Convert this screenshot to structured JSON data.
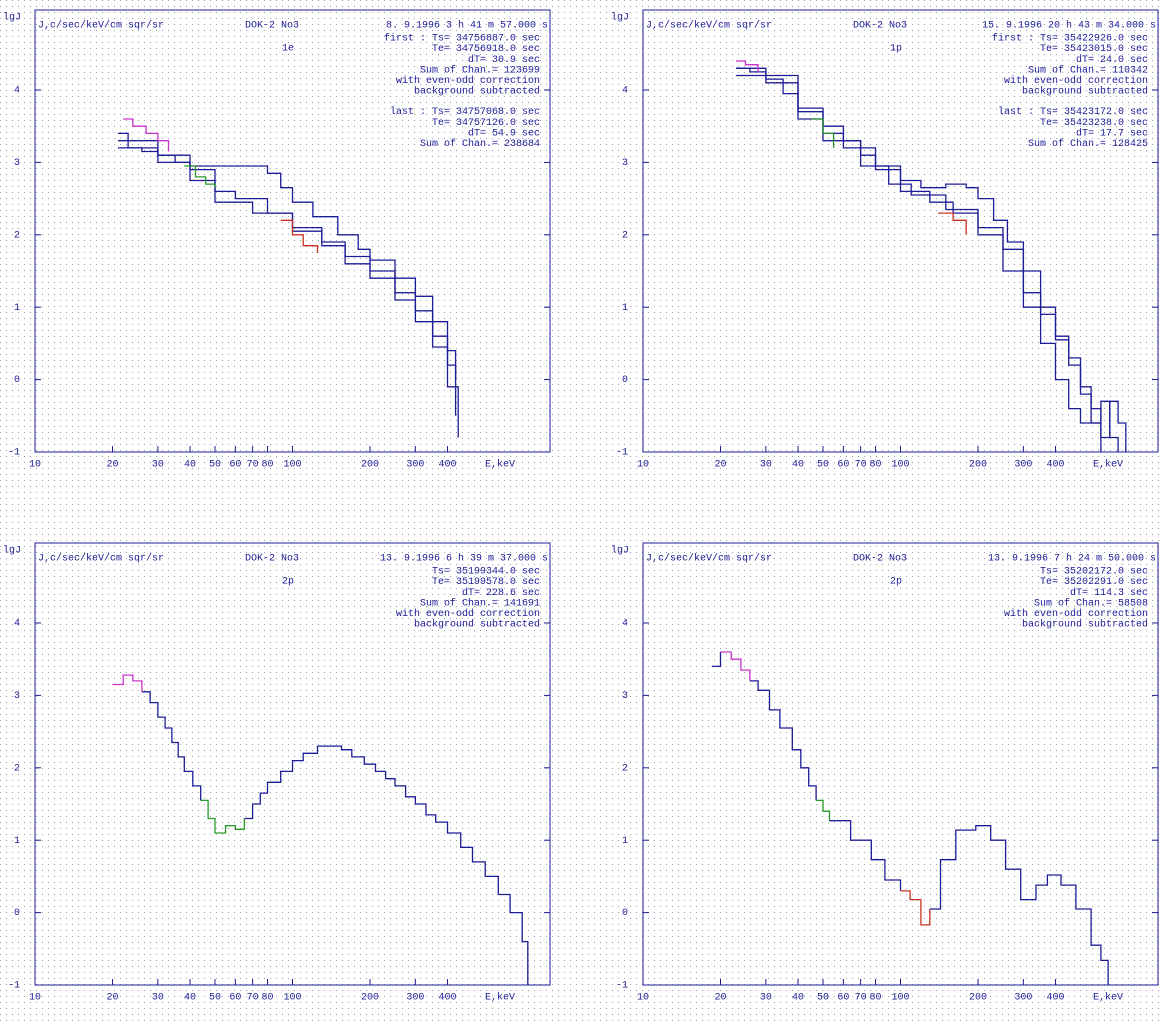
{
  "chart_data": [
    {
      "type": "step",
      "ylabel": "lgJ",
      "units": "J,c/sec/keV/cm sqr/sr",
      "instrument": "DOK-2 No3",
      "date": "8. 9.1996  3 h 41 m 57.000 s",
      "particle": "1e",
      "info": [
        "first :  Ts= 34756887.0 sec",
        "Te= 34756918.0 sec",
        "dT=   30.9 sec",
        "Sum of Chan.=     123699",
        "with even-odd correction",
        "background subtracted",
        "last :  Ts= 34757068.0 sec",
        "Te= 34757126.0 sec",
        "dT=   54.9 sec",
        "Sum of Chan.=     238684"
      ],
      "xlabel": "E,keV",
      "log_x": true,
      "xlim": [
        10,
        1000
      ],
      "xticks": [
        10,
        20,
        30,
        40,
        50,
        60,
        70,
        80,
        100,
        200,
        300,
        400
      ],
      "ylim": [
        -1,
        5
      ],
      "yticks": [
        -1,
        0,
        1,
        2,
        3,
        4
      ],
      "grid": "dotted",
      "series": [
        {
          "color": "#1c1c96",
          "x": [
            21,
            23,
            26,
            30,
            35,
            40,
            50,
            60,
            70,
            80,
            90,
            100,
            120,
            150,
            180,
            200,
            250,
            300,
            350,
            400,
            430
          ],
          "values": [
            3.3,
            3.2,
            3.15,
            3.1,
            3.0,
            2.95,
            2.95,
            2.95,
            2.95,
            2.85,
            2.65,
            2.45,
            2.25,
            2.0,
            1.8,
            1.65,
            1.4,
            1.15,
            0.8,
            0.4,
            0.0
          ]
        },
        {
          "color": "#1c1c96",
          "x": [
            21,
            23,
            30,
            40,
            50,
            60,
            80,
            100,
            130,
            160,
            200,
            250,
            300,
            350,
            400,
            430
          ],
          "values": [
            3.2,
            3.2,
            3.1,
            2.9,
            2.6,
            2.5,
            2.3,
            2.1,
            1.9,
            1.7,
            1.5,
            1.2,
            0.95,
            0.6,
            0.2,
            -0.5
          ]
        },
        {
          "color": "#1c1c96",
          "x": [
            21,
            23,
            30,
            40,
            50,
            70,
            100,
            130,
            160,
            200,
            250,
            300,
            350,
            400,
            440
          ],
          "values": [
            3.4,
            3.3,
            3.0,
            2.75,
            2.45,
            2.3,
            2.05,
            1.85,
            1.6,
            1.4,
            1.1,
            0.8,
            0.45,
            -0.1,
            -0.8
          ]
        },
        {
          "color": "#cc33cc",
          "x": [
            22,
            24,
            27,
            30,
            33
          ],
          "values": [
            3.6,
            3.5,
            3.4,
            3.3,
            3.15
          ]
        },
        {
          "color": "#2a9a2a",
          "x": [
            38,
            42,
            46,
            50
          ],
          "values": [
            2.95,
            2.8,
            2.7,
            2.65
          ]
        },
        {
          "color": "#cc3322",
          "x": [
            90,
            100,
            110,
            125
          ],
          "values": [
            2.2,
            2.0,
            1.85,
            1.75
          ]
        }
      ]
    },
    {
      "type": "step",
      "ylabel": "lgJ",
      "units": "J,c/sec/keV/cm sqr/sr",
      "instrument": "DOK-2 No3",
      "date": "15. 9.1996 20 h 43 m 34.000 s",
      "particle": "1p",
      "info": [
        "first :  Ts= 35422926.0 sec",
        "Te= 35423015.0 sec",
        "dT=   24.0 sec",
        "Sum of Chan.=     110342",
        "with even-odd correction",
        "background subtracted",
        "last :  Ts= 35423172.0 sec",
        "Te= 35423238.0 sec",
        "dT=   17.7 sec",
        "Sum of Chan.=     128425"
      ],
      "xlabel": "E,keV",
      "log_x": true,
      "xlim": [
        10,
        1000
      ],
      "xticks": [
        10,
        20,
        30,
        40,
        50,
        60,
        70,
        80,
        100,
        200,
        300,
        400
      ],
      "ylim": [
        -1,
        5
      ],
      "yticks": [
        -1,
        0,
        1,
        2,
        3,
        4
      ],
      "grid": "dotted",
      "series": [
        {
          "color": "#1c1c96",
          "x": [
            23,
            26,
            30,
            35,
            40,
            50,
            60,
            70,
            80,
            100,
            120,
            150,
            180,
            200,
            230,
            260,
            300,
            350,
            400,
            450,
            500,
            550,
            600
          ],
          "values": [
            4.3,
            4.25,
            4.15,
            3.95,
            3.75,
            3.5,
            3.3,
            3.1,
            2.95,
            2.75,
            2.65,
            2.7,
            2.65,
            2.5,
            2.2,
            1.9,
            1.5,
            1.0,
            0.6,
            0.3,
            -0.2,
            -0.6,
            -1
          ]
        },
        {
          "color": "#1c1c96",
          "x": [
            23,
            30,
            40,
            50,
            60,
            80,
            100,
            130,
            160,
            200,
            250,
            300,
            350,
            400,
            450,
            500,
            600,
            650,
            700
          ],
          "values": [
            4.3,
            4.2,
            3.7,
            3.4,
            3.2,
            2.9,
            2.6,
            2.45,
            2.3,
            2.0,
            1.5,
            1.0,
            0.5,
            0.0,
            -0.4,
            -0.6,
            -0.3,
            -0.8,
            -1
          ]
        },
        {
          "color": "#1c1c96",
          "x": [
            23,
            30,
            40,
            50,
            70,
            90,
            110,
            150,
            200,
            250,
            300,
            350,
            400,
            450,
            500,
            550,
            600,
            650,
            700,
            750
          ],
          "values": [
            4.2,
            4.1,
            3.6,
            3.3,
            2.95,
            2.7,
            2.55,
            2.35,
            2.1,
            1.8,
            1.2,
            0.9,
            0.55,
            0.2,
            -0.1,
            -0.4,
            -0.8,
            -0.3,
            -0.6,
            -1
          ]
        },
        {
          "color": "#cc33cc",
          "x": [
            23,
            25,
            28
          ],
          "values": [
            4.4,
            4.35,
            4.25
          ]
        },
        {
          "color": "#2a9a2a",
          "x": [
            45,
            50,
            55
          ],
          "values": [
            3.6,
            3.4,
            3.2
          ]
        },
        {
          "color": "#cc3322",
          "x": [
            140,
            160,
            180
          ],
          "values": [
            2.3,
            2.2,
            2.0
          ]
        }
      ]
    },
    {
      "type": "step",
      "ylabel": "lgJ",
      "units": "J,c/sec/keV/cm sqr/sr",
      "instrument": "DOK-2 No3",
      "date": "13. 9.1996  6 h 39 m 37.000 s",
      "particle": "2p",
      "info": [
        "Ts= 35199344.0 sec",
        "Te= 35199578.0 sec",
        "dT=  228.6 sec",
        "Sum of Chan.=     141691",
        "with even-odd correction",
        "background subtracted"
      ],
      "xlabel": "E,keV",
      "log_x": true,
      "xlim": [
        10,
        1000
      ],
      "xticks": [
        10,
        20,
        30,
        40,
        50,
        60,
        70,
        80,
        100,
        200,
        300,
        400
      ],
      "ylim": [
        -1,
        5
      ],
      "yticks": [
        -1,
        0,
        1,
        2,
        3,
        4
      ],
      "grid": "dotted",
      "series": [
        {
          "color": "#cc33cc",
          "x": [
            20,
            22,
            24,
            26
          ],
          "values": [
            3.15,
            3.28,
            3.2,
            3.05
          ]
        },
        {
          "color": "#1c1c96",
          "x": [
            26,
            28,
            30,
            32,
            34,
            36,
            38,
            41,
            44
          ],
          "values": [
            3.05,
            2.9,
            2.7,
            2.55,
            2.35,
            2.15,
            1.95,
            1.75,
            1.55
          ]
        },
        {
          "color": "#2a9a2a",
          "x": [
            44,
            47,
            50,
            55,
            60,
            65
          ],
          "values": [
            1.55,
            1.3,
            1.1,
            1.2,
            1.15,
            1.3
          ]
        },
        {
          "color": "#1c1c96",
          "x": [
            65,
            70,
            75,
            80,
            90,
            100,
            110,
            125,
            140,
            155,
            170,
            190,
            210,
            230,
            250,
            275,
            300,
            330,
            360,
            400,
            450,
            500,
            560,
            630,
            700,
            780,
            820
          ],
          "values": [
            1.3,
            1.5,
            1.65,
            1.8,
            1.95,
            2.1,
            2.2,
            2.3,
            2.3,
            2.25,
            2.15,
            2.05,
            1.95,
            1.85,
            1.75,
            1.6,
            1.5,
            1.35,
            1.25,
            1.1,
            0.9,
            0.7,
            0.5,
            0.25,
            0.0,
            -0.4,
            -1
          ]
        }
      ]
    },
    {
      "type": "step",
      "ylabel": "lgJ",
      "units": "J,c/sec/keV/cm sqr/sr",
      "instrument": "DOK-2 No3",
      "date": "13. 9.1996  7 h 24 m 50.000 s",
      "particle": "2p",
      "info": [
        "Ts= 35202172.0 sec",
        "Te= 35202291.0 sec",
        "dT=  114.3 sec",
        "Sum of Chan.=      58508",
        "with even-odd correction",
        "background subtracted"
      ],
      "xlabel": "E,keV",
      "log_x": true,
      "xlim": [
        10,
        1000
      ],
      "xticks": [
        10,
        20,
        30,
        40,
        50,
        60,
        70,
        80,
        100,
        200,
        300,
        400
      ],
      "ylim": [
        -1,
        5
      ],
      "yticks": [
        -1,
        0,
        1,
        2,
        3,
        4
      ],
      "grid": "dotted",
      "series": [
        {
          "color": "#1c1c96",
          "x": [
            18.5,
            20
          ],
          "values": [
            3.4,
            3.6
          ]
        },
        {
          "color": "#cc33cc",
          "x": [
            20,
            22,
            24,
            26
          ],
          "values": [
            3.6,
            3.5,
            3.35,
            3.2
          ]
        },
        {
          "color": "#1c1c96",
          "x": [
            26,
            28,
            31,
            34,
            38,
            41,
            44,
            47
          ],
          "values": [
            3.2,
            3.07,
            2.8,
            2.55,
            2.25,
            2.0,
            1.75,
            1.55
          ]
        },
        {
          "color": "#2a9a2a",
          "x": [
            47,
            50,
            53
          ],
          "values": [
            1.55,
            1.4,
            1.27
          ]
        },
        {
          "color": "#1c1c96",
          "x": [
            53,
            64,
            77,
            87,
            100
          ],
          "values": [
            1.27,
            1.0,
            0.73,
            0.45,
            0.3
          ]
        },
        {
          "color": "#cc3322",
          "x": [
            100,
            109,
            120,
            130
          ],
          "values": [
            0.3,
            0.18,
            -0.17,
            0.05
          ]
        },
        {
          "color": "#1c1c96",
          "x": [
            130,
            143,
            164,
            196,
            224,
            256,
            293,
            336,
            372,
            420,
            480,
            550,
            600,
            640
          ],
          "values": [
            0.05,
            0.73,
            1.14,
            1.2,
            1.0,
            0.6,
            0.18,
            0.38,
            0.52,
            0.38,
            0.05,
            -0.45,
            -0.66,
            -1
          ]
        }
      ]
    }
  ]
}
